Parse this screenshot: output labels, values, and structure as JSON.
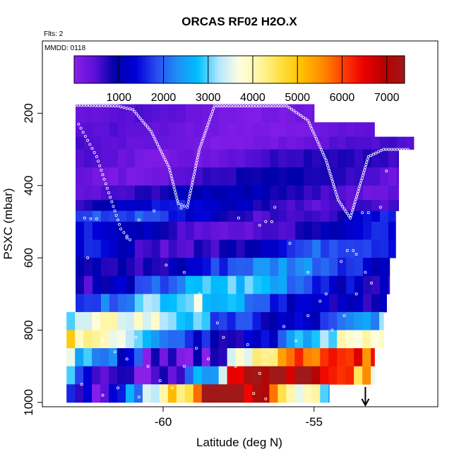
{
  "chart_data": {
    "type": "heatmap",
    "title": "ORCAS RF02 H2O.X",
    "annotations": {
      "flights": "Flts: 2",
      "date": "MMDD: 0118"
    },
    "xlabel": "Latitude (deg N)",
    "ylabel": "PSXC (mbar)",
    "x_ticks": [
      -60,
      -55
    ],
    "y_ticks": [
      200,
      400,
      600,
      800,
      1000
    ],
    "xlim": [
      -64.0,
      -50.9
    ],
    "ylim": [
      1012,
      0
    ],
    "y_inverted": true,
    "colorbar": {
      "range": [
        0,
        7400
      ],
      "ticks": [
        1000,
        2000,
        3000,
        4000,
        5000,
        6000,
        7000
      ],
      "colors": [
        "#8a1fe8",
        "#5b10d8",
        "#0000a8",
        "#0000d8",
        "#2a4cf0",
        "#1f8ef5",
        "#00c0ff",
        "#b4e6ff",
        "#ffffe0",
        "#fff5a0",
        "#ffe040",
        "#ffc000",
        "#ff8c00",
        "#ff4000",
        "#ee0000",
        "#b80000",
        "#a01818"
      ]
    },
    "layers": [
      {
        "p": [
          175,
          225
        ],
        "lat": [
          -62.9,
          -55.0
        ],
        "value": 400
      },
      {
        "p": [
          225,
          265
        ],
        "lat": [
          -62.9,
          -53.0
        ],
        "value": 380
      },
      {
        "p": [
          265,
          300
        ],
        "lat": [
          -62.9,
          -51.7
        ],
        "value": 450
      },
      {
        "p": [
          300,
          350
        ],
        "lat": [
          -62.9,
          -52.2
        ],
        "value": 650
      },
      {
        "p": [
          350,
          400
        ],
        "lat": [
          -62.9,
          -52.2
        ],
        "value": 700
      },
      {
        "p": [
          400,
          440
        ],
        "lat": [
          -62.9,
          -52.2
        ],
        "value": 900
      },
      {
        "p": [
          440,
          470
        ],
        "lat": [
          -62.9,
          -52.2
        ],
        "value": 1200
      },
      {
        "p": [
          470,
          500
        ],
        "lat": [
          -62.9,
          -52.3
        ],
        "value": 1500
      },
      {
        "p": [
          500,
          550
        ],
        "lat": [
          -62.9,
          -52.3
        ],
        "value": 1200
      },
      {
        "p": [
          550,
          600
        ],
        "lat": [
          -62.9,
          -52.3
        ],
        "value": 1600
      },
      {
        "p": [
          600,
          650
        ],
        "lat": [
          -62.9,
          -52.5
        ],
        "value": 1900
      },
      {
        "p": [
          650,
          700
        ],
        "lat": [
          -62.9,
          -52.5
        ],
        "value": 2300
      },
      {
        "p": [
          700,
          750
        ],
        "lat": [
          -62.9,
          -52.6
        ],
        "value": 2600
      },
      {
        "p": [
          750,
          800
        ],
        "lat": [
          -63.2,
          -52.7
        ],
        "value": 3000
      },
      {
        "p": [
          800,
          850
        ],
        "lat": [
          -63.2,
          -52.7
        ],
        "value": 3500
      },
      {
        "p": [
          850,
          900
        ],
        "lat": [
          -63.2,
          -53.0
        ],
        "value": 4500
      },
      {
        "p": [
          900,
          950
        ],
        "lat": [
          -63.2,
          -53.0
        ],
        "value": 5200
      },
      {
        "p": [
          950,
          1000
        ],
        "lat": [
          -63.2,
          -54.5
        ],
        "value": 5800
      }
    ],
    "marker": {
      "lat": -53.3,
      "p": 1000,
      "symbol": "arrow-down"
    }
  }
}
